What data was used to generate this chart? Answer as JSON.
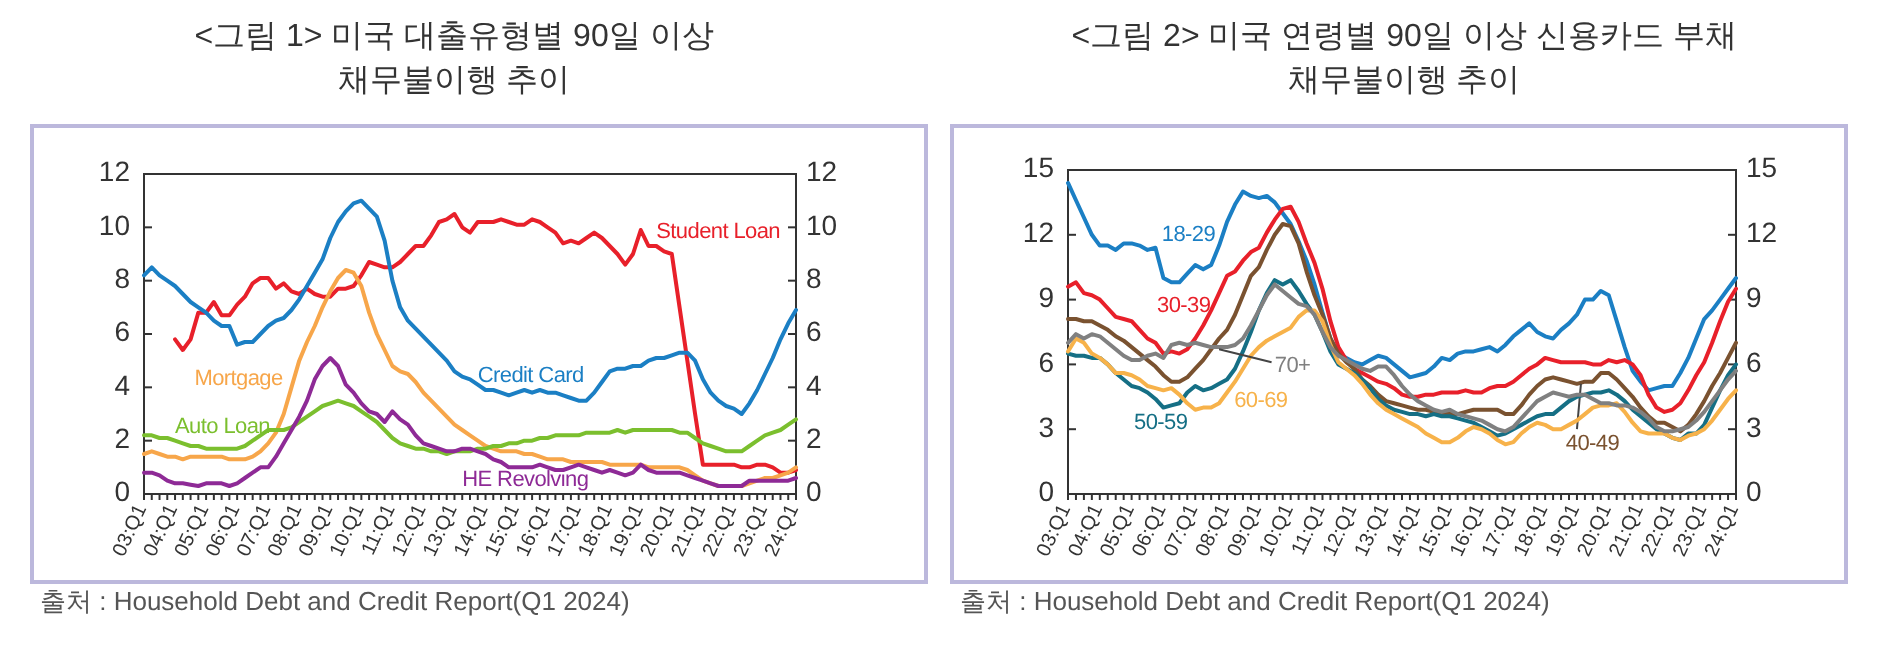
{
  "chart_data": [
    {
      "type": "line",
      "title": "<그림 1> 미국 대출유형별 90일 이상 채무불이행 추이",
      "categories": [
        "03:Q1",
        null,
        null,
        null,
        "04:Q1",
        null,
        null,
        null,
        "05:Q1",
        null,
        null,
        null,
        "06:Q1",
        null,
        null,
        null,
        "07:Q1",
        null,
        null,
        null,
        "08:Q1",
        null,
        null,
        null,
        "09:Q1",
        null,
        null,
        null,
        "10:Q1",
        null,
        null,
        null,
        "11:Q1",
        null,
        null,
        null,
        "12:Q1",
        null,
        null,
        null,
        "13:Q1",
        null,
        null,
        null,
        "14:Q1",
        null,
        null,
        null,
        "15:Q1",
        null,
        null,
        null,
        "16:Q1",
        null,
        null,
        null,
        "17:Q1",
        null,
        null,
        null,
        "18:Q1",
        null,
        null,
        null,
        "19:Q1",
        null,
        null,
        null,
        "20:Q1",
        null,
        null,
        null,
        "21:Q1",
        null,
        null,
        null,
        "22:Q1",
        null,
        null,
        null,
        "23:Q1",
        null,
        null,
        null,
        "24:Q1"
      ],
      "series": [
        {
          "name": "Student Loan",
          "color": "#e8202a",
          "values": [
            null,
            null,
            null,
            null,
            5.8,
            5.4,
            5.8,
            6.8,
            6.8,
            7.2,
            6.7,
            6.7,
            7.1,
            7.4,
            7.9,
            8.1,
            8.1,
            7.7,
            7.9,
            7.6,
            7.5,
            7.7,
            7.5,
            7.4,
            7.4,
            7.7,
            7.7,
            7.8,
            8.2,
            8.7,
            8.6,
            8.5,
            8.5,
            8.7,
            9.0,
            9.3,
            9.3,
            9.7,
            10.2,
            10.3,
            10.5,
            10.0,
            9.8,
            10.2,
            10.2,
            10.2,
            10.3,
            10.2,
            10.1,
            10.1,
            10.3,
            10.2,
            10.0,
            9.8,
            9.4,
            9.5,
            9.4,
            9.6,
            9.8,
            9.6,
            9.3,
            9.0,
            8.6,
            9.0,
            9.9,
            9.3,
            9.3,
            9.1,
            9.0,
            7.0,
            5.0,
            3.0,
            1.1,
            1.1,
            1.1,
            1.1,
            1.1,
            1.0,
            1.0,
            1.1,
            1.1,
            1.0,
            0.8,
            0.8,
            0.9
          ]
        },
        {
          "name": "Credit Card",
          "color": "#1b7fc4",
          "values": [
            8.2,
            8.5,
            8.2,
            8.0,
            7.8,
            7.5,
            7.2,
            7.0,
            6.8,
            6.5,
            6.3,
            6.3,
            5.6,
            5.7,
            5.7,
            6.0,
            6.3,
            6.5,
            6.6,
            6.9,
            7.3,
            7.8,
            8.3,
            8.8,
            9.6,
            10.2,
            10.6,
            10.9,
            11.0,
            10.7,
            10.4,
            9.5,
            8.0,
            7.0,
            6.5,
            6.2,
            5.9,
            5.6,
            5.3,
            5.0,
            4.6,
            4.4,
            4.3,
            4.1,
            3.9,
            3.9,
            3.8,
            3.7,
            3.8,
            3.9,
            3.8,
            3.9,
            3.8,
            3.8,
            3.7,
            3.6,
            3.5,
            3.5,
            3.8,
            4.2,
            4.6,
            4.7,
            4.7,
            4.8,
            4.8,
            5.0,
            5.1,
            5.1,
            5.2,
            5.3,
            5.3,
            5.0,
            4.3,
            3.8,
            3.5,
            3.3,
            3.2,
            3.0,
            3.4,
            3.9,
            4.5,
            5.1,
            5.8,
            6.4,
            6.9
          ]
        },
        {
          "name": "Mortgage",
          "color": "#f7a64a",
          "values": [
            1.5,
            1.6,
            1.5,
            1.4,
            1.4,
            1.3,
            1.4,
            1.4,
            1.4,
            1.4,
            1.4,
            1.3,
            1.3,
            1.3,
            1.4,
            1.6,
            1.9,
            2.3,
            3.0,
            4.0,
            5.0,
            5.7,
            6.3,
            7.0,
            7.6,
            8.1,
            8.4,
            8.3,
            7.8,
            6.8,
            6.0,
            5.4,
            4.8,
            4.6,
            4.5,
            4.2,
            3.8,
            3.5,
            3.2,
            2.9,
            2.6,
            2.4,
            2.2,
            2.0,
            1.8,
            1.7,
            1.6,
            1.6,
            1.6,
            1.5,
            1.5,
            1.4,
            1.3,
            1.3,
            1.3,
            1.2,
            1.2,
            1.2,
            1.2,
            1.2,
            1.1,
            1.1,
            1.1,
            1.1,
            1.1,
            1.0,
            1.0,
            1.0,
            1.0,
            1.0,
            0.9,
            0.7,
            0.5,
            0.4,
            0.3,
            0.3,
            0.3,
            0.3,
            0.4,
            0.5,
            0.6,
            0.6,
            0.7,
            0.8,
            1.0
          ]
        },
        {
          "name": "Auto Loan",
          "color": "#7bbf2e",
          "values": [
            2.2,
            2.2,
            2.1,
            2.1,
            2.0,
            1.9,
            1.8,
            1.8,
            1.7,
            1.7,
            1.7,
            1.7,
            1.7,
            1.8,
            2.0,
            2.2,
            2.4,
            2.4,
            2.4,
            2.5,
            2.7,
            2.9,
            3.1,
            3.3,
            3.4,
            3.5,
            3.4,
            3.3,
            3.1,
            2.9,
            2.7,
            2.4,
            2.1,
            1.9,
            1.8,
            1.7,
            1.7,
            1.6,
            1.6,
            1.5,
            1.6,
            1.6,
            1.6,
            1.7,
            1.7,
            1.8,
            1.8,
            1.9,
            1.9,
            2.0,
            2.0,
            2.1,
            2.1,
            2.2,
            2.2,
            2.2,
            2.2,
            2.3,
            2.3,
            2.3,
            2.3,
            2.4,
            2.3,
            2.4,
            2.4,
            2.4,
            2.4,
            2.4,
            2.4,
            2.3,
            2.3,
            2.1,
            1.9,
            1.8,
            1.7,
            1.6,
            1.6,
            1.6,
            1.8,
            2.0,
            2.2,
            2.3,
            2.4,
            2.6,
            2.8
          ]
        },
        {
          "name": "HE Revolving",
          "color": "#8e2a96",
          "values": [
            0.8,
            0.8,
            0.7,
            0.5,
            0.4,
            0.4,
            0.35,
            0.3,
            0.4,
            0.4,
            0.4,
            0.3,
            0.4,
            0.6,
            0.8,
            1.0,
            1.0,
            1.4,
            1.9,
            2.4,
            2.9,
            3.5,
            4.3,
            4.8,
            5.1,
            4.8,
            4.1,
            3.8,
            3.4,
            3.1,
            3.0,
            2.7,
            3.1,
            2.8,
            2.6,
            2.2,
            1.9,
            1.8,
            1.7,
            1.6,
            1.6,
            1.7,
            1.7,
            1.6,
            1.5,
            1.3,
            1.2,
            1.0,
            1.0,
            1.0,
            1.0,
            1.1,
            1.0,
            0.9,
            0.9,
            1.0,
            1.1,
            1.0,
            0.9,
            0.8,
            0.9,
            0.8,
            0.7,
            0.8,
            1.1,
            0.9,
            0.8,
            0.8,
            0.8,
            0.8,
            0.7,
            0.6,
            0.5,
            0.4,
            0.3,
            0.3,
            0.3,
            0.3,
            0.5,
            0.5,
            0.5,
            0.5,
            0.5,
            0.5,
            0.6
          ]
        }
      ],
      "ylim": [
        0,
        12
      ],
      "yticks": [
        0,
        2,
        4,
        6,
        8,
        10,
        12
      ],
      "y2lim": [
        0,
        12
      ],
      "y2ticks": [
        0,
        2,
        4,
        6,
        8,
        10,
        12
      ],
      "annotations": [
        "출처 : Household Debt and Credit Report(Q1 2024)"
      ]
    },
    {
      "type": "line",
      "title": "<그림 2> 미국 연령별 90일 이상 신용카드 부채 채무불이행 추이",
      "categories": [
        "03:Q1",
        null,
        null,
        null,
        "04:Q1",
        null,
        null,
        null,
        "05:Q1",
        null,
        null,
        null,
        "06:Q1",
        null,
        null,
        null,
        "07:Q1",
        null,
        null,
        null,
        "08:Q1",
        null,
        null,
        null,
        "09:Q1",
        null,
        null,
        null,
        "10:Q1",
        null,
        null,
        null,
        "11:Q1",
        null,
        null,
        null,
        "12:Q1",
        null,
        null,
        null,
        "13:Q1",
        null,
        null,
        null,
        "14:Q1",
        null,
        null,
        null,
        "15:Q1",
        null,
        null,
        null,
        "16:Q1",
        null,
        null,
        null,
        "17:Q1",
        null,
        null,
        null,
        "18:Q1",
        null,
        null,
        null,
        "19:Q1",
        null,
        null,
        null,
        "20:Q1",
        null,
        null,
        null,
        "21:Q1",
        null,
        null,
        null,
        "22:Q1",
        null,
        null,
        null,
        "23:Q1",
        null,
        null,
        null,
        "24:Q1"
      ],
      "series": [
        {
          "name": "18-29",
          "color": "#1b7fc4",
          "values": [
            14.4,
            13.6,
            12.8,
            12.0,
            11.5,
            11.5,
            11.3,
            11.6,
            11.6,
            11.5,
            11.3,
            11.4,
            10.0,
            9.8,
            9.8,
            10.2,
            10.6,
            10.4,
            10.6,
            11.5,
            12.6,
            13.4,
            14.0,
            13.8,
            13.7,
            13.8,
            13.5,
            13.0,
            12.5,
            11.7,
            10.8,
            9.7,
            8.4,
            7.2,
            6.5,
            6.3,
            6.1,
            6.0,
            6.2,
            6.4,
            6.3,
            6.0,
            5.7,
            5.4,
            5.5,
            5.6,
            5.9,
            6.3,
            6.2,
            6.5,
            6.6,
            6.6,
            6.7,
            6.8,
            6.6,
            6.9,
            7.3,
            7.6,
            7.9,
            7.5,
            7.3,
            7.2,
            7.6,
            7.9,
            8.3,
            9.0,
            9.0,
            9.4,
            9.2,
            8.0,
            6.8,
            5.7,
            5.2,
            4.8,
            4.9,
            5.0,
            5.0,
            5.6,
            6.3,
            7.2,
            8.1,
            8.5,
            9.0,
            9.5,
            10.0
          ]
        },
        {
          "name": "30-39",
          "color": "#e8202a",
          "values": [
            9.6,
            9.8,
            9.3,
            9.2,
            9.0,
            8.6,
            8.2,
            8.1,
            8.0,
            7.6,
            7.2,
            7.0,
            6.5,
            6.6,
            6.5,
            6.7,
            7.2,
            7.8,
            8.5,
            9.3,
            10.1,
            10.3,
            10.8,
            11.2,
            11.4,
            12.1,
            12.7,
            13.2,
            13.3,
            12.6,
            11.6,
            10.7,
            9.5,
            8.0,
            6.8,
            6.2,
            5.8,
            5.6,
            5.4,
            5.2,
            5.1,
            4.9,
            4.6,
            4.5,
            4.5,
            4.6,
            4.6,
            4.7,
            4.7,
            4.7,
            4.8,
            4.7,
            4.7,
            4.9,
            5.0,
            5.0,
            5.2,
            5.5,
            5.8,
            6.0,
            6.3,
            6.2,
            6.1,
            6.1,
            6.1,
            6.1,
            6.0,
            6.0,
            6.2,
            6.1,
            6.2,
            6.0,
            5.5,
            4.6,
            4.0,
            3.8,
            3.9,
            4.2,
            4.8,
            5.5,
            6.1,
            7.0,
            8.0,
            8.9,
            9.5
          ]
        },
        {
          "name": "40-49",
          "color": "#7a5230",
          "values": [
            8.1,
            8.1,
            8.0,
            8.0,
            7.8,
            7.6,
            7.3,
            7.1,
            6.8,
            6.5,
            6.2,
            5.9,
            5.5,
            5.2,
            5.2,
            5.4,
            5.8,
            6.2,
            6.7,
            7.2,
            7.6,
            8.3,
            9.2,
            10.1,
            10.5,
            11.3,
            12.0,
            12.5,
            12.4,
            11.6,
            10.3,
            9.2,
            8.3,
            7.2,
            6.5,
            6.1,
            5.8,
            5.3,
            5.0,
            4.6,
            4.3,
            4.2,
            4.1,
            4.0,
            3.9,
            3.9,
            3.8,
            3.7,
            3.7,
            3.7,
            3.8,
            3.9,
            3.9,
            3.9,
            3.9,
            3.7,
            3.7,
            4.1,
            4.6,
            5.0,
            5.3,
            5.4,
            5.3,
            5.2,
            5.1,
            5.2,
            5.2,
            5.6,
            5.6,
            5.3,
            4.9,
            4.5,
            4.0,
            3.6,
            3.3,
            3.3,
            3.1,
            2.9,
            3.2,
            3.7,
            4.3,
            5.0,
            5.6,
            6.3,
            7.0
          ]
        },
        {
          "name": "50-59",
          "color": "#156f85",
          "values": [
            6.5,
            6.4,
            6.4,
            6.3,
            6.3,
            6.0,
            5.6,
            5.3,
            5.0,
            4.9,
            4.7,
            4.4,
            4.0,
            4.1,
            4.2,
            4.7,
            5.0,
            4.8,
            4.9,
            5.1,
            5.3,
            5.8,
            6.6,
            7.5,
            8.5,
            9.3,
            9.9,
            9.7,
            9.9,
            9.4,
            8.8,
            8.3,
            7.5,
            6.6,
            6.0,
            5.8,
            5.6,
            5.3,
            4.9,
            4.4,
            4.1,
            3.9,
            3.8,
            3.7,
            3.7,
            3.6,
            3.7,
            3.6,
            3.6,
            3.5,
            3.4,
            3.3,
            3.1,
            2.9,
            2.7,
            2.8,
            3.0,
            3.2,
            3.4,
            3.6,
            3.7,
            3.7,
            4.0,
            4.3,
            4.5,
            4.6,
            4.7,
            4.7,
            4.8,
            4.6,
            4.3,
            3.9,
            3.6,
            3.3,
            3.0,
            2.8,
            2.6,
            2.5,
            2.8,
            2.8,
            3.2,
            4.0,
            4.8,
            5.5,
            6.0
          ]
        },
        {
          "name": "60-69",
          "color": "#f7b24a",
          "values": [
            6.6,
            7.2,
            7.0,
            6.5,
            6.3,
            6.0,
            5.6,
            5.6,
            5.5,
            5.3,
            5.0,
            4.9,
            4.8,
            4.9,
            4.6,
            4.2,
            3.9,
            4.0,
            4.0,
            4.2,
            4.7,
            5.2,
            5.8,
            6.4,
            6.8,
            7.1,
            7.3,
            7.5,
            7.7,
            8.2,
            8.5,
            8.5,
            8.0,
            6.9,
            6.1,
            5.8,
            5.5,
            5.1,
            4.6,
            4.2,
            3.9,
            3.7,
            3.5,
            3.3,
            3.1,
            2.8,
            2.6,
            2.4,
            2.4,
            2.6,
            2.9,
            3.1,
            3.0,
            2.8,
            2.5,
            2.3,
            2.4,
            2.8,
            3.1,
            3.3,
            3.2,
            3.0,
            3.0,
            3.2,
            3.4,
            3.7,
            4.0,
            4.1,
            4.1,
            4.2,
            3.8,
            3.3,
            2.9,
            2.8,
            2.8,
            2.8,
            2.6,
            2.5,
            2.7,
            2.8,
            3.0,
            3.4,
            3.9,
            4.4,
            4.8
          ]
        },
        {
          "name": "70+",
          "color": "#808080",
          "values": [
            7.0,
            7.4,
            7.2,
            7.4,
            7.3,
            7.0,
            6.7,
            6.4,
            6.2,
            6.2,
            6.4,
            6.5,
            6.3,
            6.9,
            7.0,
            6.9,
            7.0,
            6.9,
            6.8,
            6.8,
            6.8,
            6.9,
            7.2,
            7.8,
            8.5,
            9.2,
            9.7,
            9.4,
            9.1,
            8.8,
            8.7,
            8.3,
            7.5,
            6.8,
            6.4,
            6.2,
            6.0,
            5.8,
            5.7,
            5.9,
            5.9,
            5.5,
            5.0,
            4.6,
            4.3,
            4.1,
            3.9,
            3.8,
            3.9,
            3.7,
            3.6,
            3.5,
            3.4,
            3.2,
            3.0,
            2.9,
            3.1,
            3.5,
            3.9,
            4.3,
            4.5,
            4.7,
            4.6,
            4.5,
            4.6,
            4.6,
            4.4,
            4.2,
            4.2,
            4.1,
            4.1,
            4.0,
            3.8,
            3.5,
            3.1,
            2.9,
            2.9,
            3.0,
            3.1,
            3.4,
            3.8,
            4.3,
            4.8,
            5.3,
            5.7
          ]
        }
      ],
      "ylim": [
        0,
        15
      ],
      "yticks": [
        0,
        3,
        6,
        9,
        12,
        15
      ],
      "y2lim": [
        0,
        15
      ],
      "y2ticks": [
        0,
        3,
        6,
        9,
        12,
        15
      ],
      "annotations": [
        "출처 : Household Debt and Credit Report(Q1 2024)"
      ]
    }
  ]
}
